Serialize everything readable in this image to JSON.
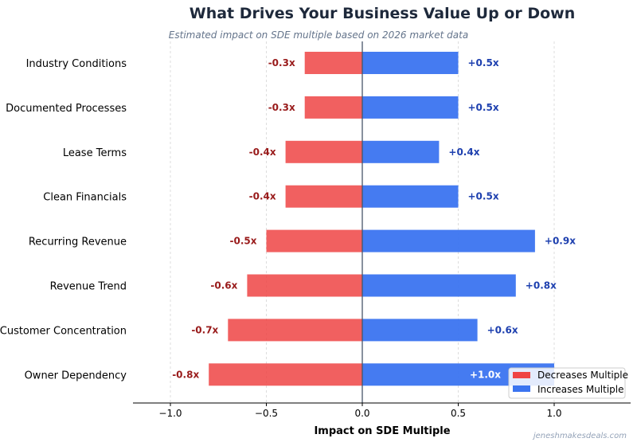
{
  "chart_data": {
    "type": "bar",
    "orientation": "horizontal",
    "title": "What Drives Your Business Value Up or Down",
    "subtitle": "Estimated impact on SDE multiple based on 2026 market data",
    "xlabel": "Impact on SDE Multiple",
    "ylabel": "",
    "xlim": [
      -1.2,
      1.4
    ],
    "xticks": [
      -1.0,
      -0.5,
      0.0,
      0.5,
      1.0
    ],
    "xtick_labels": [
      "−1.0",
      "−0.5",
      "0.0",
      "0.5",
      "1.0"
    ],
    "grid": "vertical dashed",
    "legend_position": "bottom-right",
    "categories": [
      "Industry Conditions",
      "Documented Processes",
      "Lease Terms",
      "Clean Financials",
      "Recurring Revenue",
      "Revenue Trend",
      "Customer Concentration",
      "Owner Dependency"
    ],
    "series": [
      {
        "name": "Decreases Multiple",
        "color": "#ef4444",
        "values": [
          -0.3,
          -0.3,
          -0.4,
          -0.4,
          -0.5,
          -0.6,
          -0.7,
          -0.8
        ],
        "labels": [
          "-0.3x",
          "-0.3x",
          "-0.4x",
          "-0.4x",
          "-0.5x",
          "-0.6x",
          "-0.7x",
          "-0.8x"
        ]
      },
      {
        "name": "Increases Multiple",
        "color": "#3b74f0",
        "values": [
          0.5,
          0.5,
          0.4,
          0.5,
          0.9,
          0.8,
          0.6,
          1.0
        ],
        "labels": [
          "+0.5x",
          "+0.5x",
          "+0.4x",
          "+0.5x",
          "+0.9x",
          "+0.8x",
          "+0.6x",
          "+1.0x"
        ]
      }
    ]
  },
  "watermark": "jeneshmakesdeals.com"
}
